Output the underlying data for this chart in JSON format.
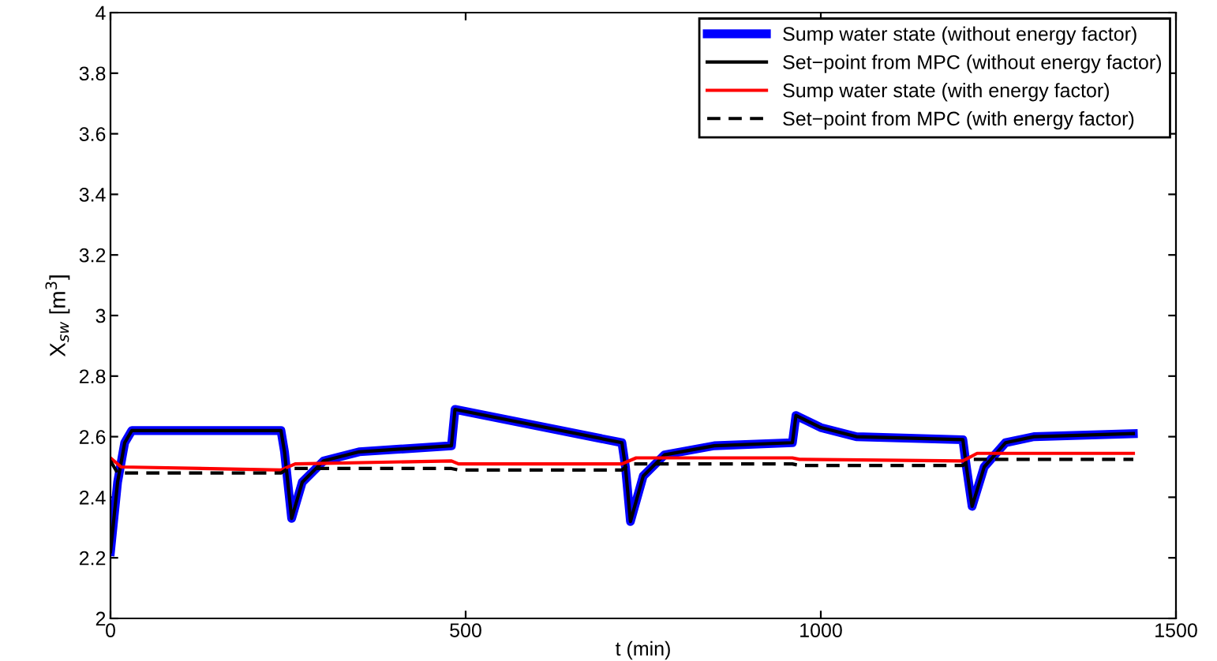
{
  "chart_data": {
    "type": "line",
    "xlabel": "t (min)",
    "ylabel": "X$_{sw}$ [m$^{3}$]",
    "xlim": [
      0,
      1500
    ],
    "xticks": [
      0,
      500,
      1000,
      1500
    ],
    "ylim": [
      2,
      4
    ],
    "yticks": [
      2,
      2.2,
      2.4,
      2.6,
      2.8,
      3,
      3.2,
      3.4,
      3.6,
      3.8,
      4
    ],
    "grid": false,
    "legend": "top right",
    "marker": "none",
    "series": [
      {
        "name": "Sump water state (without energy factor)",
        "color": "#0000ff",
        "line_style": "solid",
        "x": [
          0,
          10,
          20,
          30,
          240,
          245,
          255,
          270,
          300,
          350,
          480,
          485,
          720,
          725,
          732,
          750,
          780,
          850,
          960,
          965,
          1000,
          1050,
          1200,
          1205,
          1213,
          1230,
          1260,
          1300,
          1440
        ],
        "values": [
          2.22,
          2.45,
          2.58,
          2.62,
          2.62,
          2.55,
          2.33,
          2.45,
          2.52,
          2.55,
          2.57,
          2.69,
          2.58,
          2.5,
          2.32,
          2.47,
          2.54,
          2.57,
          2.58,
          2.67,
          2.63,
          2.6,
          2.59,
          2.5,
          2.37,
          2.5,
          2.58,
          2.6,
          2.61
        ]
      },
      {
        "name": "Set−point from MPC (without energy factor)",
        "color": "#000000",
        "line_style": "solid",
        "x": [
          0,
          10,
          20,
          30,
          240,
          245,
          255,
          270,
          300,
          350,
          480,
          485,
          720,
          725,
          732,
          750,
          780,
          850,
          960,
          965,
          1000,
          1050,
          1200,
          1205,
          1213,
          1230,
          1260,
          1300,
          1440
        ],
        "values": [
          2.22,
          2.45,
          2.58,
          2.62,
          2.62,
          2.55,
          2.33,
          2.45,
          2.52,
          2.55,
          2.57,
          2.69,
          2.58,
          2.5,
          2.32,
          2.47,
          2.54,
          2.57,
          2.58,
          2.67,
          2.63,
          2.6,
          2.59,
          2.5,
          2.37,
          2.5,
          2.58,
          2.6,
          2.61
        ]
      },
      {
        "name": "Sump water state (with energy factor)",
        "color": "#ff0000",
        "line_style": "solid",
        "x": [
          0,
          15,
          240,
          260,
          480,
          490,
          720,
          740,
          960,
          970,
          1200,
          1220,
          1440
        ],
        "values": [
          2.53,
          2.5,
          2.49,
          2.51,
          2.52,
          2.51,
          2.51,
          2.53,
          2.53,
          2.525,
          2.52,
          2.545,
          2.545
        ]
      },
      {
        "name": "Set−point from MPC (with energy factor)",
        "color": "#000000",
        "line_style": "dashed",
        "x": [
          0,
          10,
          240,
          250,
          480,
          490,
          720,
          730,
          960,
          970,
          1200,
          1210,
          1440
        ],
        "values": [
          2.52,
          2.48,
          2.48,
          2.495,
          2.495,
          2.49,
          2.49,
          2.51,
          2.51,
          2.505,
          2.505,
          2.525,
          2.525
        ]
      }
    ]
  }
}
